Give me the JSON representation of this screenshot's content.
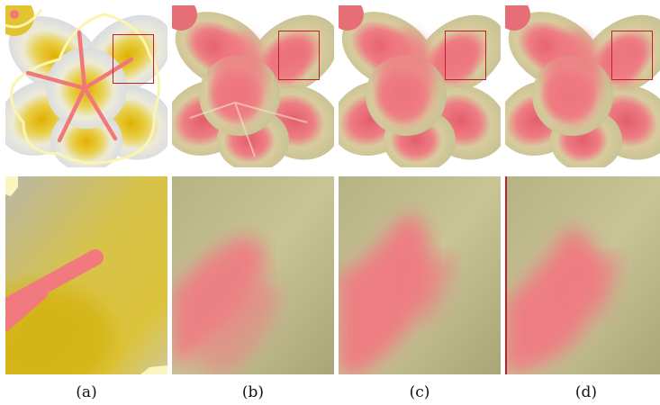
{
  "figure": {
    "columns": [
      {
        "id": "a",
        "caption": "(a)"
      },
      {
        "id": "b",
        "caption": "(b)"
      },
      {
        "id": "c",
        "caption": "(c)"
      },
      {
        "id": "d",
        "caption": "(d)"
      }
    ],
    "colors": {
      "petal_white": "#e8e8ee",
      "petal_yellow": "#e2c21a",
      "recolor_green": "#cbc79a",
      "recolor_pink": "#f2787e",
      "stroke_pink": "#f07878",
      "stroke_yellow": "#fbf5b0",
      "zoom_box": "#c0202c"
    },
    "icons": [
      "flower-photo-with-strokes",
      "recolored-flower",
      "zoom-crop"
    ]
  }
}
